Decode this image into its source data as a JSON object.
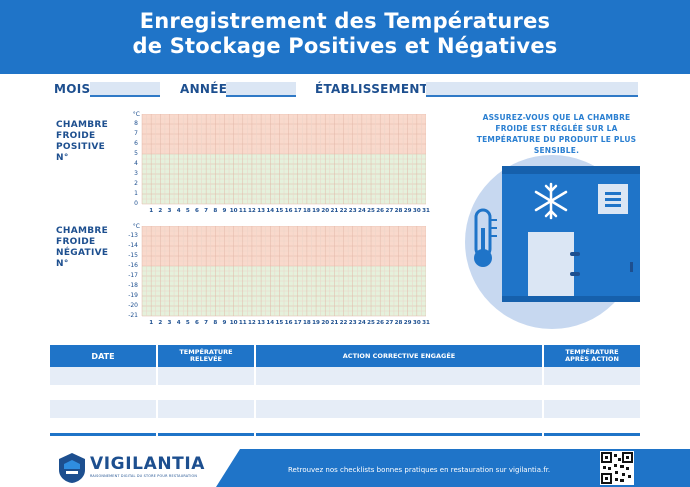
{
  "header": {
    "title_line1": "Enregistrement des Températures",
    "title_line2": "de Stockage Positives et Négatives"
  },
  "fields": {
    "mois": "MOIS",
    "annee": "ANNÉE",
    "etablissement": "ÉTABLISSEMENT"
  },
  "positive_chamber": {
    "label_lines": [
      "CHAMBRE",
      "FROIDE",
      "POSITIVE",
      "N°"
    ],
    "unit": "°C",
    "y_labels": [
      "8",
      "7",
      "6",
      "5",
      "4",
      "3",
      "2",
      "1",
      "0"
    ],
    "x_labels": [
      "1",
      "2",
      "3",
      "4",
      "5",
      "6",
      "7",
      "8",
      "9",
      "10",
      "11",
      "12",
      "13",
      "14",
      "15",
      "16",
      "17",
      "18",
      "19",
      "20",
      "21",
      "22",
      "23",
      "24",
      "25",
      "26",
      "27",
      "28",
      "29",
      "30",
      "31"
    ]
  },
  "negative_chamber": {
    "label_lines": [
      "CHAMBRE",
      "FROIDE",
      "NÉGATIVE",
      "N°"
    ],
    "unit": "°C",
    "y_labels": [
      "-13",
      "-14",
      "-15",
      "-16",
      "-17",
      "-18",
      "-19",
      "-20",
      "-21"
    ],
    "x_labels": [
      "1",
      "2",
      "3",
      "4",
      "5",
      "6",
      "7",
      "8",
      "9",
      "10",
      "11",
      "12",
      "13",
      "14",
      "15",
      "16",
      "17",
      "18",
      "19",
      "20",
      "21",
      "22",
      "23",
      "24",
      "25",
      "26",
      "27",
      "28",
      "29",
      "30",
      "31"
    ]
  },
  "note": {
    "lines": [
      "ASSUREZ-VOUS QUE LA CHAMBRE",
      "FROIDE EST RÉGLÉE SUR LA",
      "TEMPÉRATURE DU PRODUIT LE PLUS",
      "SENSIBLE."
    ]
  },
  "table": {
    "col_date": "DATE",
    "col_temp_line1": "TEMPÉRATURE",
    "col_temp_line2": "RELEVÉE",
    "col_action": "ACTION CORRECTIVE ENGAGÉE",
    "col_after_line1": "TEMPÉRATURE",
    "col_after_line2": "APRÈS ACTION"
  },
  "footer": {
    "brand": "VIGILANTIA",
    "tagline": "RAISONNEMENT DIGITAL DU STORE POUR RESTAURATION",
    "message": "Retrouvez nos checklists bonnes pratiques en restauration sur vigilantia.fr."
  },
  "colors": {
    "primary": "#1f74c8",
    "zone_warm": "#f9d9cc",
    "zone_ok": "#e5f1dc",
    "illustration_bg": "#c7d8f0"
  }
}
